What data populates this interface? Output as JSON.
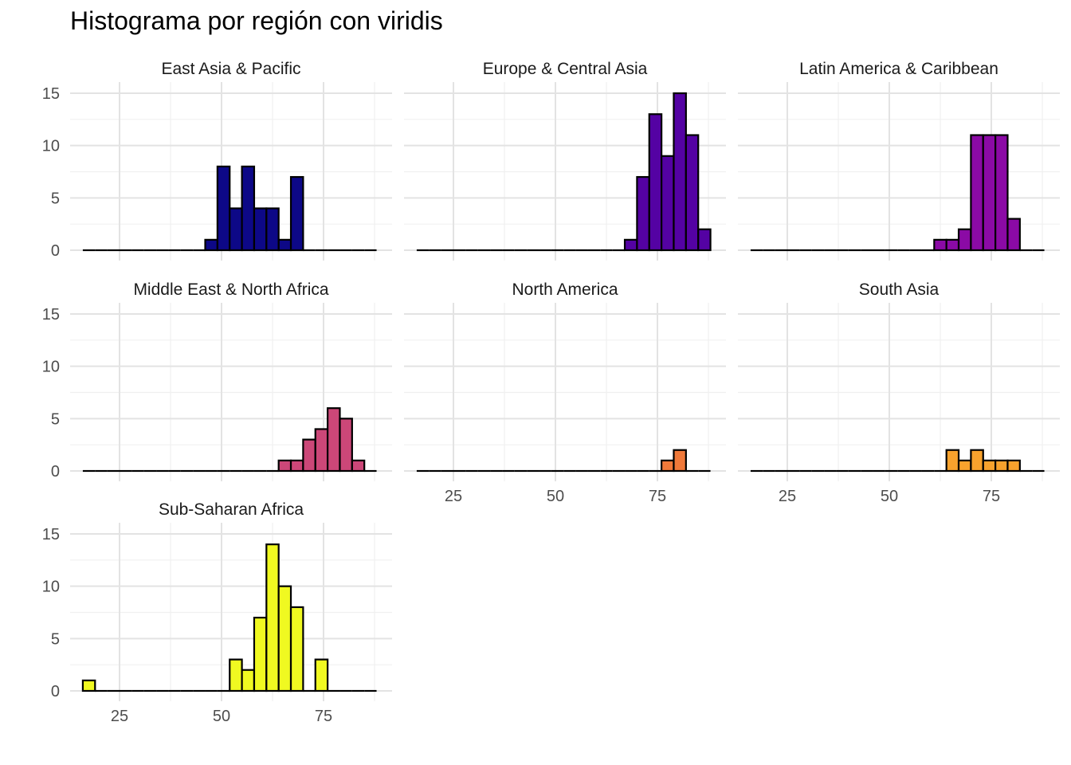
{
  "chart_data": {
    "type": "bar",
    "title": "Histograma por región con viridis",
    "xlabel": "",
    "ylabel": "",
    "xlim": [
      16,
      88
    ],
    "ylim": [
      0,
      15
    ],
    "x_ticks": [
      25,
      50,
      75
    ],
    "y_ticks": [
      0,
      5,
      10,
      15
    ],
    "grid": true,
    "bin_width": 3,
    "bins_start": 16,
    "panels": [
      {
        "name": "East Asia & Pacific",
        "color": "#0D0887",
        "counts": [
          0,
          0,
          0,
          0,
          0,
          0,
          0,
          0,
          0,
          0,
          1,
          8,
          4,
          8,
          4,
          4,
          1,
          7,
          0,
          0,
          0,
          0,
          0,
          0
        ]
      },
      {
        "name": "Europe & Central Asia",
        "color": "#5402A3",
        "counts": [
          0,
          0,
          0,
          0,
          0,
          0,
          0,
          0,
          0,
          0,
          0,
          0,
          0,
          0,
          0,
          0,
          0,
          1,
          7,
          13,
          9,
          15,
          11,
          2
        ]
      },
      {
        "name": "Latin America & Caribbean",
        "color": "#8B0AA5",
        "counts": [
          0,
          0,
          0,
          0,
          0,
          0,
          0,
          0,
          0,
          0,
          0,
          0,
          0,
          0,
          0,
          1,
          1,
          2,
          11,
          11,
          11,
          3,
          0,
          0
        ]
      },
      {
        "name": "Middle East & North Africa",
        "color": "#CC4778",
        "counts": [
          0,
          0,
          0,
          0,
          0,
          0,
          0,
          0,
          0,
          0,
          0,
          0,
          0,
          0,
          0,
          0,
          1,
          1,
          3,
          4,
          6,
          5,
          1,
          0
        ]
      },
      {
        "name": "North America",
        "color": "#F0793A",
        "counts": [
          0,
          0,
          0,
          0,
          0,
          0,
          0,
          0,
          0,
          0,
          0,
          0,
          0,
          0,
          0,
          0,
          0,
          0,
          0,
          0,
          1,
          2,
          0,
          0
        ]
      },
      {
        "name": "South Asia",
        "color": "#F8A22D",
        "counts": [
          0,
          0,
          0,
          0,
          0,
          0,
          0,
          0,
          0,
          0,
          0,
          0,
          0,
          0,
          0,
          0,
          2,
          1,
          2,
          1,
          1,
          1,
          0,
          0
        ]
      },
      {
        "name": "Sub-Saharan Africa",
        "color": "#F0F921",
        "counts": [
          1,
          0,
          0,
          0,
          0,
          0,
          0,
          0,
          0,
          0,
          0,
          0,
          3,
          2,
          7,
          14,
          10,
          8,
          0,
          3,
          0,
          0,
          0,
          0
        ]
      }
    ]
  }
}
